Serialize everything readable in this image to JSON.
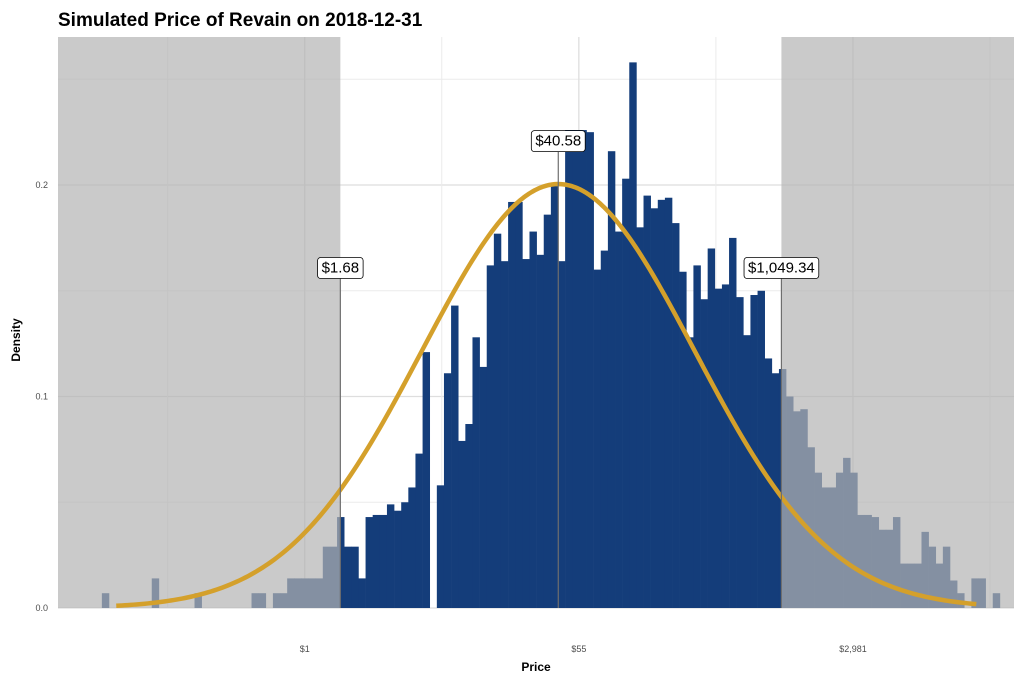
{
  "chart_data": {
    "type": "bar",
    "title": "Simulated Price of Revain on 2018-12-31",
    "xlabel": "Price",
    "ylabel": "Density",
    "x_scale": "log",
    "xlim_log": [
      -3.6,
      10.35
    ],
    "ylim": [
      0,
      0.27
    ],
    "y_ticks": [
      0.0,
      0.1,
      0.2
    ],
    "y_tick_labels": [
      "0.0",
      "0.1",
      "0.2"
    ],
    "x_ticks_log": [
      0,
      4,
      8
    ],
    "x_tick_labels": [
      "$1",
      "$55",
      "$2,981"
    ],
    "x_minor_ticks_log": [
      -2,
      2,
      6,
      10
    ],
    "bin_start_log": -2.96,
    "bin_width_log": 0.104,
    "histogram_density": [
      0.007,
      0.0,
      0.0,
      0.0,
      0.0,
      0.0,
      0.0,
      0.014,
      0.0,
      0.0,
      0.0,
      0.0,
      0.0,
      0.007,
      0.0,
      0.0,
      0.0,
      0.0,
      0.0,
      0.0,
      0.0,
      0.007,
      0.007,
      0.0,
      0.007,
      0.007,
      0.014,
      0.014,
      0.014,
      0.014,
      0.014,
      0.029,
      0.029,
      0.043,
      0.029,
      0.029,
      0.014,
      0.043,
      0.044,
      0.044,
      0.049,
      0.046,
      0.05,
      0.057,
      0.073,
      0.121,
      0.0,
      0.058,
      0.111,
      0.143,
      0.079,
      0.087,
      0.128,
      0.114,
      0.162,
      0.177,
      0.164,
      0.192,
      0.192,
      0.165,
      0.178,
      0.167,
      0.186,
      0.2,
      0.164,
      0.226,
      0.226,
      0.226,
      0.225,
      0.16,
      0.169,
      0.216,
      0.178,
      0.203,
      0.258,
      0.18,
      0.195,
      0.189,
      0.193,
      0.194,
      0.182,
      0.159,
      0.128,
      0.162,
      0.146,
      0.17,
      0.151,
      0.153,
      0.175,
      0.147,
      0.129,
      0.148,
      0.15,
      0.118,
      0.111,
      0.113,
      0.1,
      0.093,
      0.094,
      0.076,
      0.064,
      0.057,
      0.057,
      0.064,
      0.071,
      0.064,
      0.044,
      0.044,
      0.043,
      0.037,
      0.037,
      0.043,
      0.021,
      0.021,
      0.021,
      0.036,
      0.029,
      0.021,
      0.029,
      0.013,
      0.007,
      0.0,
      0.014,
      0.014,
      0.0,
      0.007
    ],
    "normal_fit": {
      "mean_log": 3.7,
      "sd_log": 1.99,
      "color": "#D4A02B"
    },
    "shaded_regions_log": [
      [
        -3.6,
        0.52
      ],
      [
        6.956,
        10.35
      ]
    ],
    "annotations": [
      {
        "label": "$1.68",
        "x_log": 0.52,
        "y": 0.161
      },
      {
        "label": "$40.58",
        "x_log": 3.7,
        "y": 0.221
      },
      {
        "label": "$1,049.34",
        "x_log": 6.956,
        "y": 0.161
      }
    ],
    "bar_color": "#143D7A",
    "shade_color": "#B3B3B3"
  }
}
